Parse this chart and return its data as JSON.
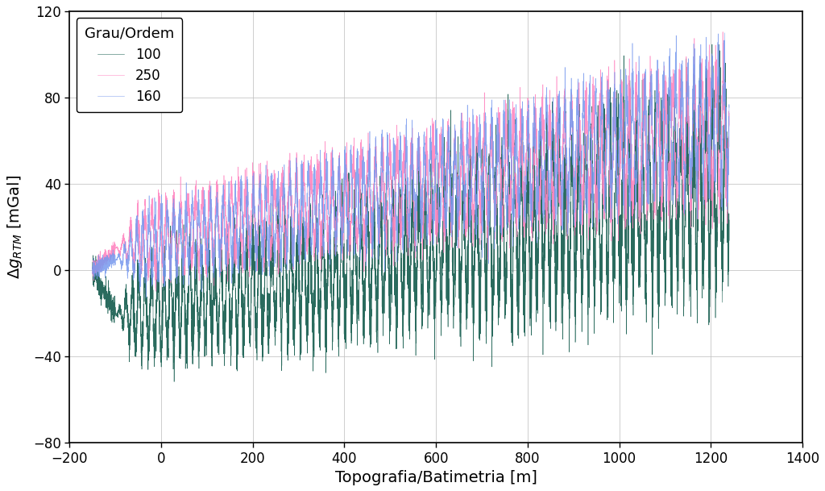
{
  "xlabel": "Topografia/Batimetria [m]",
  "xlim": [
    -200,
    1400
  ],
  "ylim": [
    -80,
    120
  ],
  "xticks": [
    -200,
    0,
    200,
    400,
    600,
    800,
    1000,
    1200,
    1400
  ],
  "yticks": [
    -80,
    -40,
    0,
    40,
    80,
    120
  ],
  "legend_title": "Grau/Ordem",
  "legend_labels": [
    "100",
    "250",
    "160"
  ],
  "color_100": "#2a6b5e",
  "color_250": "#ff85c0",
  "color_160": "#7799ee",
  "figsize": [
    10.24,
    6.09
  ],
  "dpi": 100,
  "n_points": 8000,
  "x_start": -150,
  "x_end": 1240
}
